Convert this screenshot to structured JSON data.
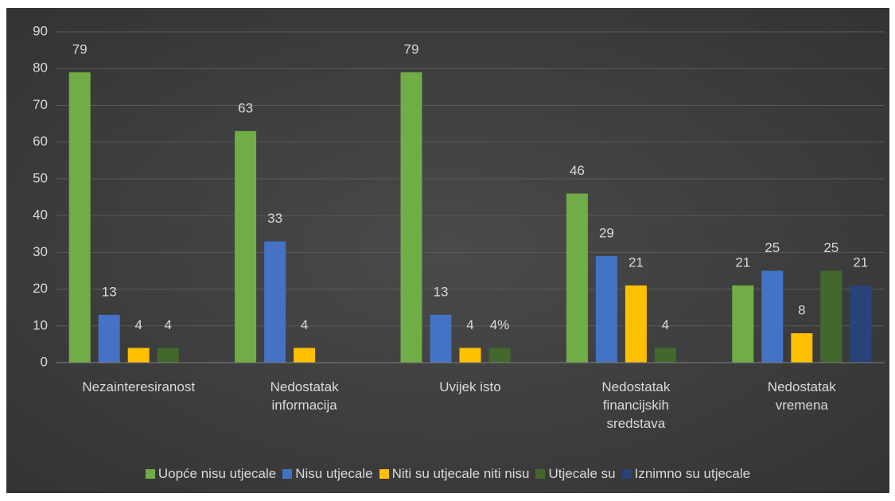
{
  "chart_data": {
    "type": "bar",
    "categories": [
      "Nezainteresiranost",
      "Nedostatak informacija",
      "Uvijek isto",
      "Nedostatak financijskih sredstava",
      "Nedostatak vremena"
    ],
    "series": [
      {
        "name": "Uopće nisu utjecale",
        "color": "#70ad47",
        "values": [
          79,
          63,
          79,
          46,
          21
        ]
      },
      {
        "name": "Nisu utjecale",
        "color": "#4472c4",
        "values": [
          13,
          33,
          13,
          29,
          25
        ]
      },
      {
        "name": "Niti su utjecale niti nisu",
        "color": "#ffc000",
        "values": [
          4,
          4,
          4,
          21,
          8
        ]
      },
      {
        "name": "Utjecale su",
        "color": "#43682b",
        "values": [
          4,
          null,
          4,
          4,
          25
        ],
        "value_labels": [
          "4",
          null,
          "4%",
          "4",
          "25"
        ]
      },
      {
        "name": "Iznimno su utjecale",
        "color": "#264478",
        "values": [
          null,
          null,
          null,
          null,
          21
        ]
      }
    ],
    "ylim": [
      0,
      90
    ],
    "yticks": [
      0,
      10,
      20,
      30,
      40,
      50,
      60,
      70,
      80,
      90
    ],
    "grid": true,
    "legend": "bottom"
  }
}
